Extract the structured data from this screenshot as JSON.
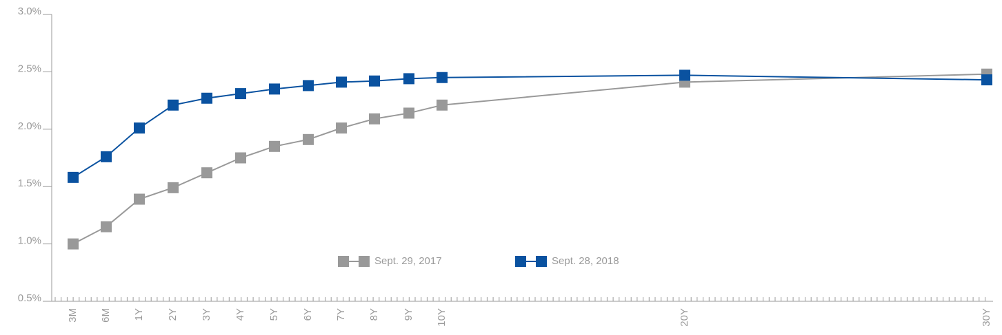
{
  "chart_data": {
    "type": "line",
    "categories": [
      "3M",
      "6M",
      "1Y",
      "2Y",
      "3Y",
      "4Y",
      "5Y",
      "6Y",
      "7Y",
      "8Y",
      "9Y",
      "10Y",
      "20Y",
      "30Y"
    ],
    "series": [
      {
        "name": "Sept. 29, 2017",
        "color": "#999999",
        "values": [
          1.0,
          1.15,
          1.39,
          1.49,
          1.62,
          1.75,
          1.85,
          1.91,
          2.01,
          2.09,
          2.14,
          2.21,
          2.41,
          2.48
        ]
      },
      {
        "name": "Sept. 28, 2018",
        "color": "#0a52a0",
        "values": [
          1.58,
          1.76,
          2.01,
          2.21,
          2.27,
          2.31,
          2.35,
          2.38,
          2.41,
          2.42,
          2.44,
          2.45,
          2.47,
          2.43
        ]
      }
    ],
    "ylim": [
      0.5,
      3.0
    ],
    "yticks": [
      {
        "value": 0.5,
        "label": "0.5%"
      },
      {
        "value": 1.0,
        "label": "1.0%"
      },
      {
        "value": 1.5,
        "label": "1.5%"
      },
      {
        "value": 2.0,
        "label": "2.0%"
      },
      {
        "value": 2.5,
        "label": "2.5%"
      },
      {
        "value": 3.0,
        "label": "3.0%"
      }
    ],
    "grid": false,
    "legend": "bottom"
  }
}
